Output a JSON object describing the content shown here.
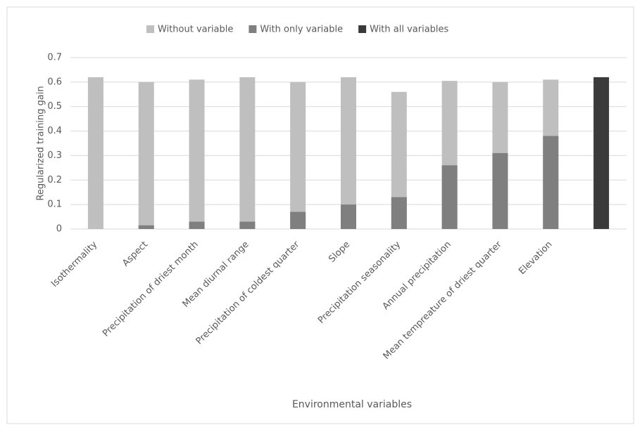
{
  "chart_data": {
    "type": "bar",
    "bar_mode": "overlap",
    "y_label": "Regularized training gain",
    "x_label": "Environmental variables",
    "categories": [
      "Isothermality",
      "Aspect",
      "Precipitation of driest month",
      "Mean diurnal range",
      "Precipitation of coldest quarter",
      "Slope",
      "Precipitation seasonality",
      "Annual precipitation",
      "Mean tempreature of driest quarter",
      "Elevation",
      null
    ],
    "series": [
      {
        "name": "Without variable",
        "color": "#bfbfbf",
        "values": [
          0.62,
          0.6,
          0.61,
          0.62,
          0.6,
          0.62,
          0.56,
          0.605,
          0.6,
          0.61,
          null
        ]
      },
      {
        "name": "With only variable",
        "color": "#7f7f7f",
        "values": [
          0,
          0.015,
          0.03,
          0.03,
          0.07,
          0.1,
          0.13,
          0.26,
          0.31,
          0.38,
          null
        ]
      },
      {
        "name": "With all variables",
        "color": "#3a3a3a",
        "values": [
          null,
          null,
          null,
          null,
          null,
          null,
          null,
          null,
          null,
          null,
          0.62
        ]
      }
    ],
    "ylim": [
      0,
      0.7
    ],
    "yticks": [
      0,
      0.1,
      0.2,
      0.3,
      0.4,
      0.5,
      0.6,
      0.7
    ],
    "grid": true,
    "legend": "top"
  }
}
